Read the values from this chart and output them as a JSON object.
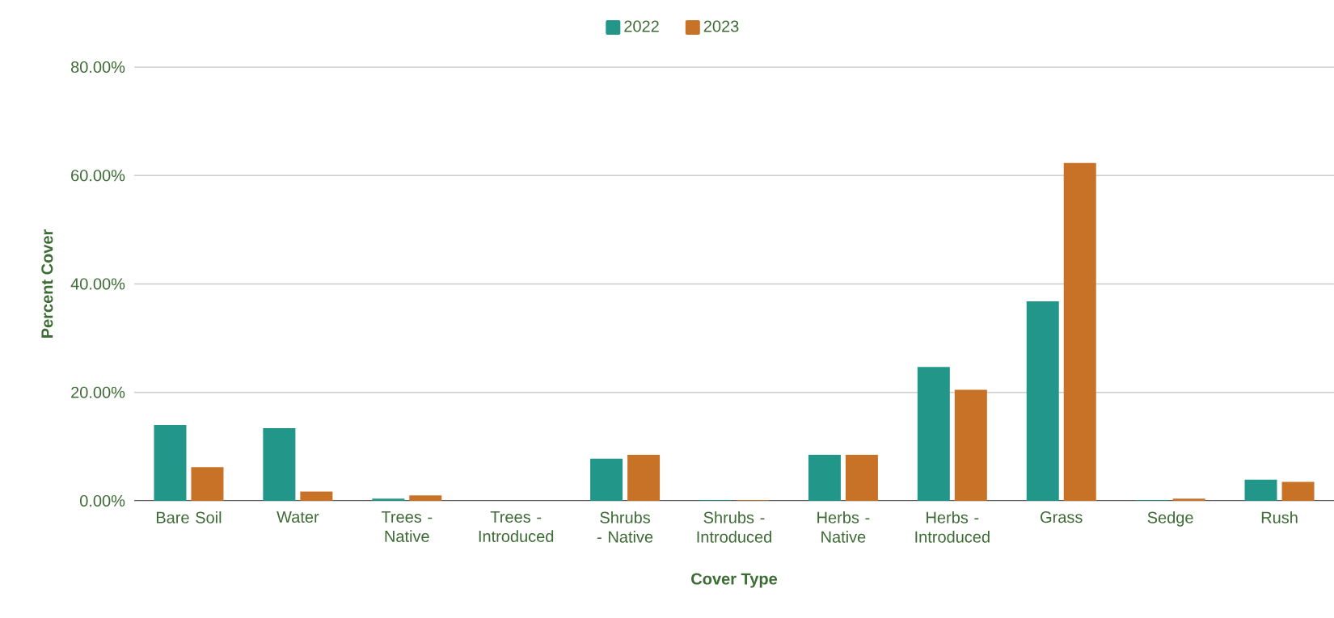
{
  "chart_data": {
    "type": "bar",
    "xlabel": "Cover Type",
    "ylabel": "Percent Cover",
    "categories": [
      "Bare Soil",
      "Water",
      "Trees - Native",
      "Trees - Introduced",
      "Shrubs - Native",
      "Shrubs - Introduced",
      "Herbs - Native",
      "Herbs - Introduced",
      "Grass",
      "Sedge",
      "Rush"
    ],
    "series": [
      {
        "name": "2022",
        "color": "#229689",
        "values": [
          14.0,
          13.4,
          0.4,
          0,
          7.8,
          0.1,
          8.5,
          24.7,
          36.8,
          0.1,
          3.9
        ]
      },
      {
        "name": "2023",
        "color": "#c87228",
        "values": [
          6.2,
          1.7,
          1.0,
          0,
          8.5,
          0.1,
          8.5,
          20.5,
          62.3,
          0.4,
          3.5
        ]
      }
    ],
    "ylim": [
      0,
      80
    ],
    "yticks": [
      {
        "value": 0,
        "label": "0.00%"
      },
      {
        "value": 20,
        "label": "20.00%"
      },
      {
        "value": 40,
        "label": "40.00%"
      },
      {
        "value": 60,
        "label": "60.00%"
      },
      {
        "value": 80,
        "label": "80.00%"
      }
    ],
    "grid": "y",
    "legend": "top"
  }
}
